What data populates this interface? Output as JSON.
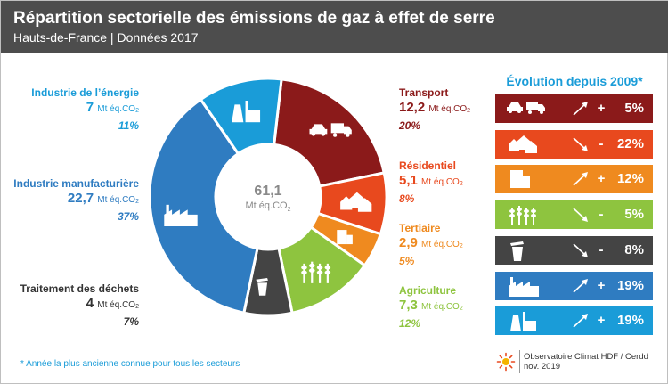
{
  "header": {
    "title": "Répartition sectorielle des émissions de gaz à effet de serre",
    "subtitle": "Hauts-de-France | Données 2017"
  },
  "colors": {
    "transport": "#8b1a1a",
    "residentiel": "#e8491e",
    "tertiaire": "#ef8a1f",
    "agriculture": "#8ec43f",
    "dechets": "#444444",
    "manufacturiere": "#2f7cc1",
    "energie": "#1a9cd8"
  },
  "chart_data": {
    "type": "pie",
    "center_value": "61,1",
    "center_unit": "Mt éq.CO",
    "center_unit_sub": "2",
    "unit_label": "Mt éq.CO",
    "unit_sub": "2",
    "slices": [
      {
        "key": "transport",
        "name": "Transport",
        "value": 12.2,
        "value_label": "12,2",
        "pct": "20%",
        "icon": "car-truck-icon"
      },
      {
        "key": "residentiel",
        "name": "Résidentiel",
        "value": 5.1,
        "value_label": "5,1",
        "pct": "8%",
        "icon": "houses-icon"
      },
      {
        "key": "tertiaire",
        "name": "Tertiaire",
        "value": 2.9,
        "value_label": "2,9",
        "pct": "5%",
        "icon": "office-building-icon"
      },
      {
        "key": "agriculture",
        "name": "Agriculture",
        "value": 7.3,
        "value_label": "7,3",
        "pct": "12%",
        "icon": "wheat-icon"
      },
      {
        "key": "dechets",
        "name": "Traitement des déchets",
        "value": 4,
        "value_label": "4",
        "pct": "7%",
        "icon": "trash-bin-icon"
      },
      {
        "key": "manufacturiere",
        "name": "Industrie manufacturière",
        "value": 22.7,
        "value_label": "22,7",
        "pct": "37%",
        "icon": "factory-icon"
      },
      {
        "key": "energie",
        "name": "Industrie de l’énergie",
        "value": 7,
        "value_label": "7",
        "pct": "11%",
        "icon": "power-plant-icon"
      }
    ]
  },
  "evolution": {
    "title": "Évolution depuis 2009*",
    "rows": [
      {
        "key": "transport",
        "direction": "up",
        "sign": "+",
        "value": "5%",
        "icon": "car-truck-icon"
      },
      {
        "key": "residentiel",
        "direction": "down",
        "sign": "-",
        "value": "22%",
        "icon": "houses-icon"
      },
      {
        "key": "tertiaire",
        "direction": "up",
        "sign": "+",
        "value": "12%",
        "icon": "office-building-icon"
      },
      {
        "key": "agriculture",
        "direction": "down",
        "sign": "-",
        "value": "5%",
        "icon": "wheat-icon"
      },
      {
        "key": "dechets",
        "direction": "down",
        "sign": "-",
        "value": "8%",
        "icon": "trash-bin-icon"
      },
      {
        "key": "manufacturiere",
        "direction": "up",
        "sign": "+",
        "value": "19%",
        "icon": "factory-icon"
      },
      {
        "key": "energie",
        "direction": "up",
        "sign": "+",
        "value": "19%",
        "icon": "power-plant-icon"
      }
    ]
  },
  "footnote": "* Année la plus ancienne connue pour tous les secteurs",
  "credit": {
    "line1": "Observatoire Climat HDF / Cerdd",
    "line2": "nov. 2019"
  }
}
